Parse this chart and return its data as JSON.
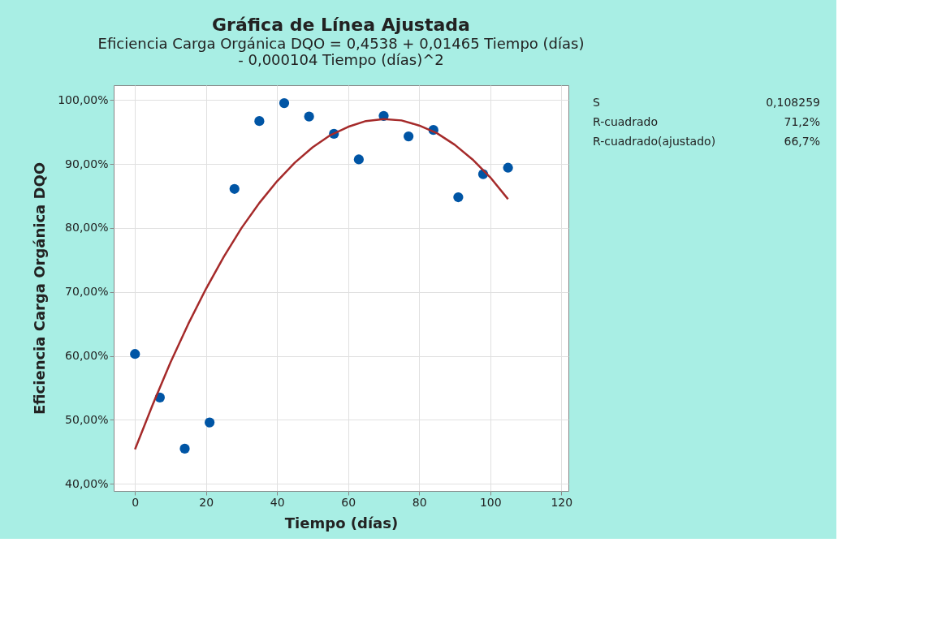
{
  "chart_data": {
    "type": "scatter",
    "title": "Gráfica de Línea Ajustada",
    "subtitle": "Eficiencia Carga Orgánica DQO = 0,4538 + 0,01465 Tiempo (días)\n- 0,000104 Tiempo (días)^2",
    "xlabel": "Tiempo (días)",
    "ylabel": "Eficiencia Carga Orgánica DQO",
    "series": [
      {
        "color": "#0055a5",
        "x": [
          0,
          7,
          14,
          21,
          28,
          35,
          42,
          49,
          56,
          63,
          70,
          77,
          84,
          91,
          98,
          105
        ],
        "values": [
          60.3,
          53.5,
          45.5,
          49.6,
          86.1,
          96.7,
          99.5,
          97.4,
          94.7,
          90.7,
          97.5,
          94.3,
          95.3,
          84.8,
          88.4,
          89.4
        ]
      },
      {
        "type": "line",
        "color": "#a52a2a",
        "x": [
          0,
          5,
          10,
          15,
          20,
          25,
          30,
          35,
          40,
          45,
          50,
          55,
          60,
          65,
          70,
          75,
          80,
          85,
          90,
          95,
          100,
          105
        ],
        "values": [
          45.4,
          52.4,
          59.0,
          65.0,
          70.5,
          75.5,
          80.0,
          83.9,
          87.3,
          90.2,
          92.6,
          94.5,
          95.8,
          96.7,
          97.0,
          96.8,
          96.0,
          94.8,
          93.0,
          90.7,
          87.9,
          84.5
        ]
      }
    ],
    "xlim": [
      -6,
      122
    ],
    "xticks": [
      0,
      20,
      40,
      60,
      80,
      100,
      120
    ],
    "ylim": [
      38.9,
      102.3
    ],
    "yticks": [
      {
        "value": 40,
        "label": "40,00%"
      },
      {
        "value": 50,
        "label": "50,00%"
      },
      {
        "value": 60,
        "label": "60,00%"
      },
      {
        "value": 70,
        "label": "70,00%"
      },
      {
        "value": 80,
        "label": "80,00%"
      },
      {
        "value": 90,
        "label": "90,00%"
      },
      {
        "value": 100,
        "label": "100,00%"
      }
    ],
    "annotations": [
      "S",
      "0,108259",
      "R-cuadrado",
      "71,2%",
      "R-cuadrado(ajustado)",
      "66,7%"
    ],
    "grid": true,
    "line_style": "solid"
  }
}
